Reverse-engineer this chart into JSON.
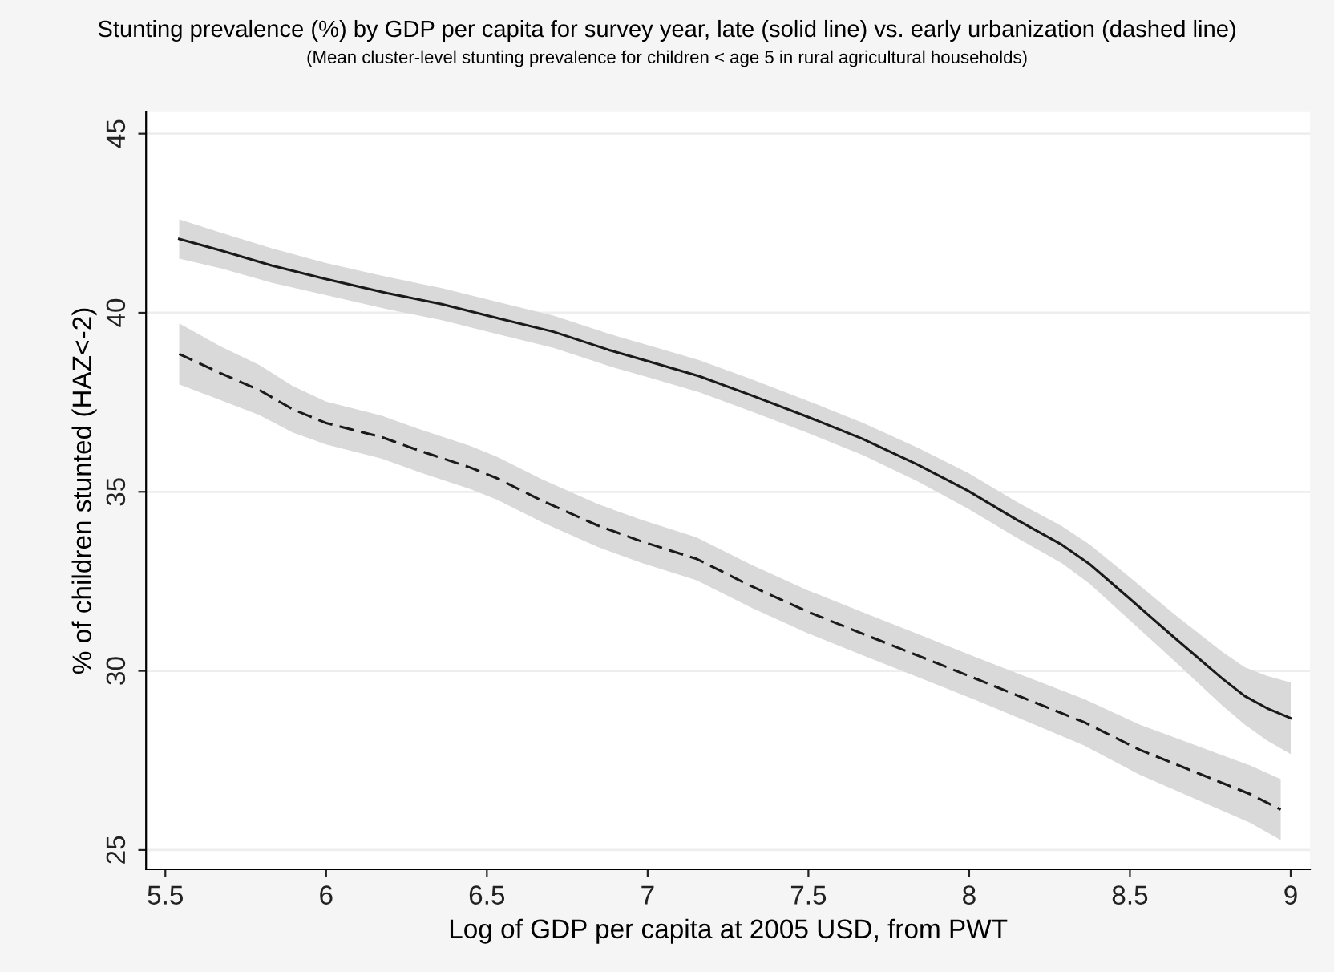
{
  "chart_data": {
    "type": "line",
    "title": "Stunting prevalence (%) by GDP per capita for survey year, late (solid line) vs. early urbanization (dashed line)",
    "subtitle": "(Mean cluster-level stunting prevalence for children < age 5 in rural agricultural households)",
    "xlabel": "Log of GDP per capita at 2005 USD, from PWT",
    "ylabel": "% of children stunted (HAZ<-2)",
    "xlim": [
      5.44,
      9.06
    ],
    "xticks": [
      5.5,
      6,
      6.5,
      7,
      7.5,
      8,
      8.5,
      9
    ],
    "ylim": [
      24.46,
      45.6
    ],
    "yticks": [
      25,
      30,
      35,
      40,
      45
    ],
    "grid": "y",
    "legend": false,
    "series": [
      {
        "color": "#1a1a1a",
        "line_style": "solid",
        "x": [
          5.543,
          5.672,
          5.83,
          6.0,
          6.19,
          6.36,
          6.534,
          6.707,
          6.88,
          7.0,
          7.16,
          7.324,
          7.496,
          7.668,
          7.84,
          7.996,
          8.15,
          8.289,
          8.375,
          8.495,
          8.633,
          8.788,
          8.857,
          8.926,
          9.0
        ],
        "values": [
          42.06,
          41.74,
          41.32,
          40.94,
          40.55,
          40.24,
          39.85,
          39.47,
          38.96,
          38.65,
          38.23,
          37.69,
          37.1,
          36.48,
          35.76,
          35.03,
          34.21,
          33.52,
          32.98,
          32.05,
          30.97,
          29.78,
          29.3,
          28.96,
          28.68
        ],
        "lower": [
          41.51,
          41.24,
          40.84,
          40.49,
          40.1,
          39.79,
          39.4,
          39.02,
          38.51,
          38.2,
          37.78,
          37.24,
          36.65,
          36.03,
          35.29,
          34.53,
          33.71,
          33.0,
          32.43,
          31.45,
          30.32,
          29.03,
          28.5,
          28.06,
          27.68
        ],
        "upper": [
          42.61,
          42.24,
          41.8,
          41.39,
          41.0,
          40.69,
          40.3,
          39.92,
          39.41,
          39.1,
          38.68,
          38.14,
          37.55,
          36.93,
          36.23,
          35.53,
          34.71,
          34.04,
          33.53,
          32.65,
          31.62,
          30.53,
          30.1,
          29.86,
          29.68
        ]
      },
      {
        "color": "#1a1a1a",
        "line_style": "dashed",
        "x": [
          5.543,
          5.672,
          5.793,
          5.897,
          6.0,
          6.172,
          6.293,
          6.448,
          6.534,
          6.672,
          6.845,
          6.98,
          7.152,
          7.324,
          7.496,
          7.668,
          7.84,
          8.013,
          8.185,
          8.357,
          8.53,
          8.702,
          8.874,
          8.969
        ],
        "values": [
          38.85,
          38.31,
          37.84,
          37.3,
          36.92,
          36.53,
          36.14,
          35.68,
          35.37,
          34.75,
          34.06,
          33.62,
          33.13,
          32.36,
          31.66,
          31.04,
          30.43,
          29.81,
          29.19,
          28.57,
          27.8,
          27.18,
          26.56,
          26.13
        ],
        "lower": [
          38.0,
          37.56,
          37.14,
          36.65,
          36.32,
          35.93,
          35.54,
          35.08,
          34.77,
          34.15,
          33.46,
          33.02,
          32.53,
          31.76,
          31.06,
          30.44,
          29.83,
          29.21,
          28.57,
          27.92,
          27.1,
          26.43,
          25.76,
          25.28
        ],
        "upper": [
          39.7,
          39.06,
          38.54,
          37.95,
          37.52,
          37.13,
          36.74,
          36.28,
          35.97,
          35.35,
          34.66,
          34.22,
          33.73,
          32.96,
          32.26,
          31.64,
          31.03,
          30.41,
          29.81,
          29.22,
          28.5,
          27.93,
          27.36,
          26.98
        ]
      }
    ]
  }
}
